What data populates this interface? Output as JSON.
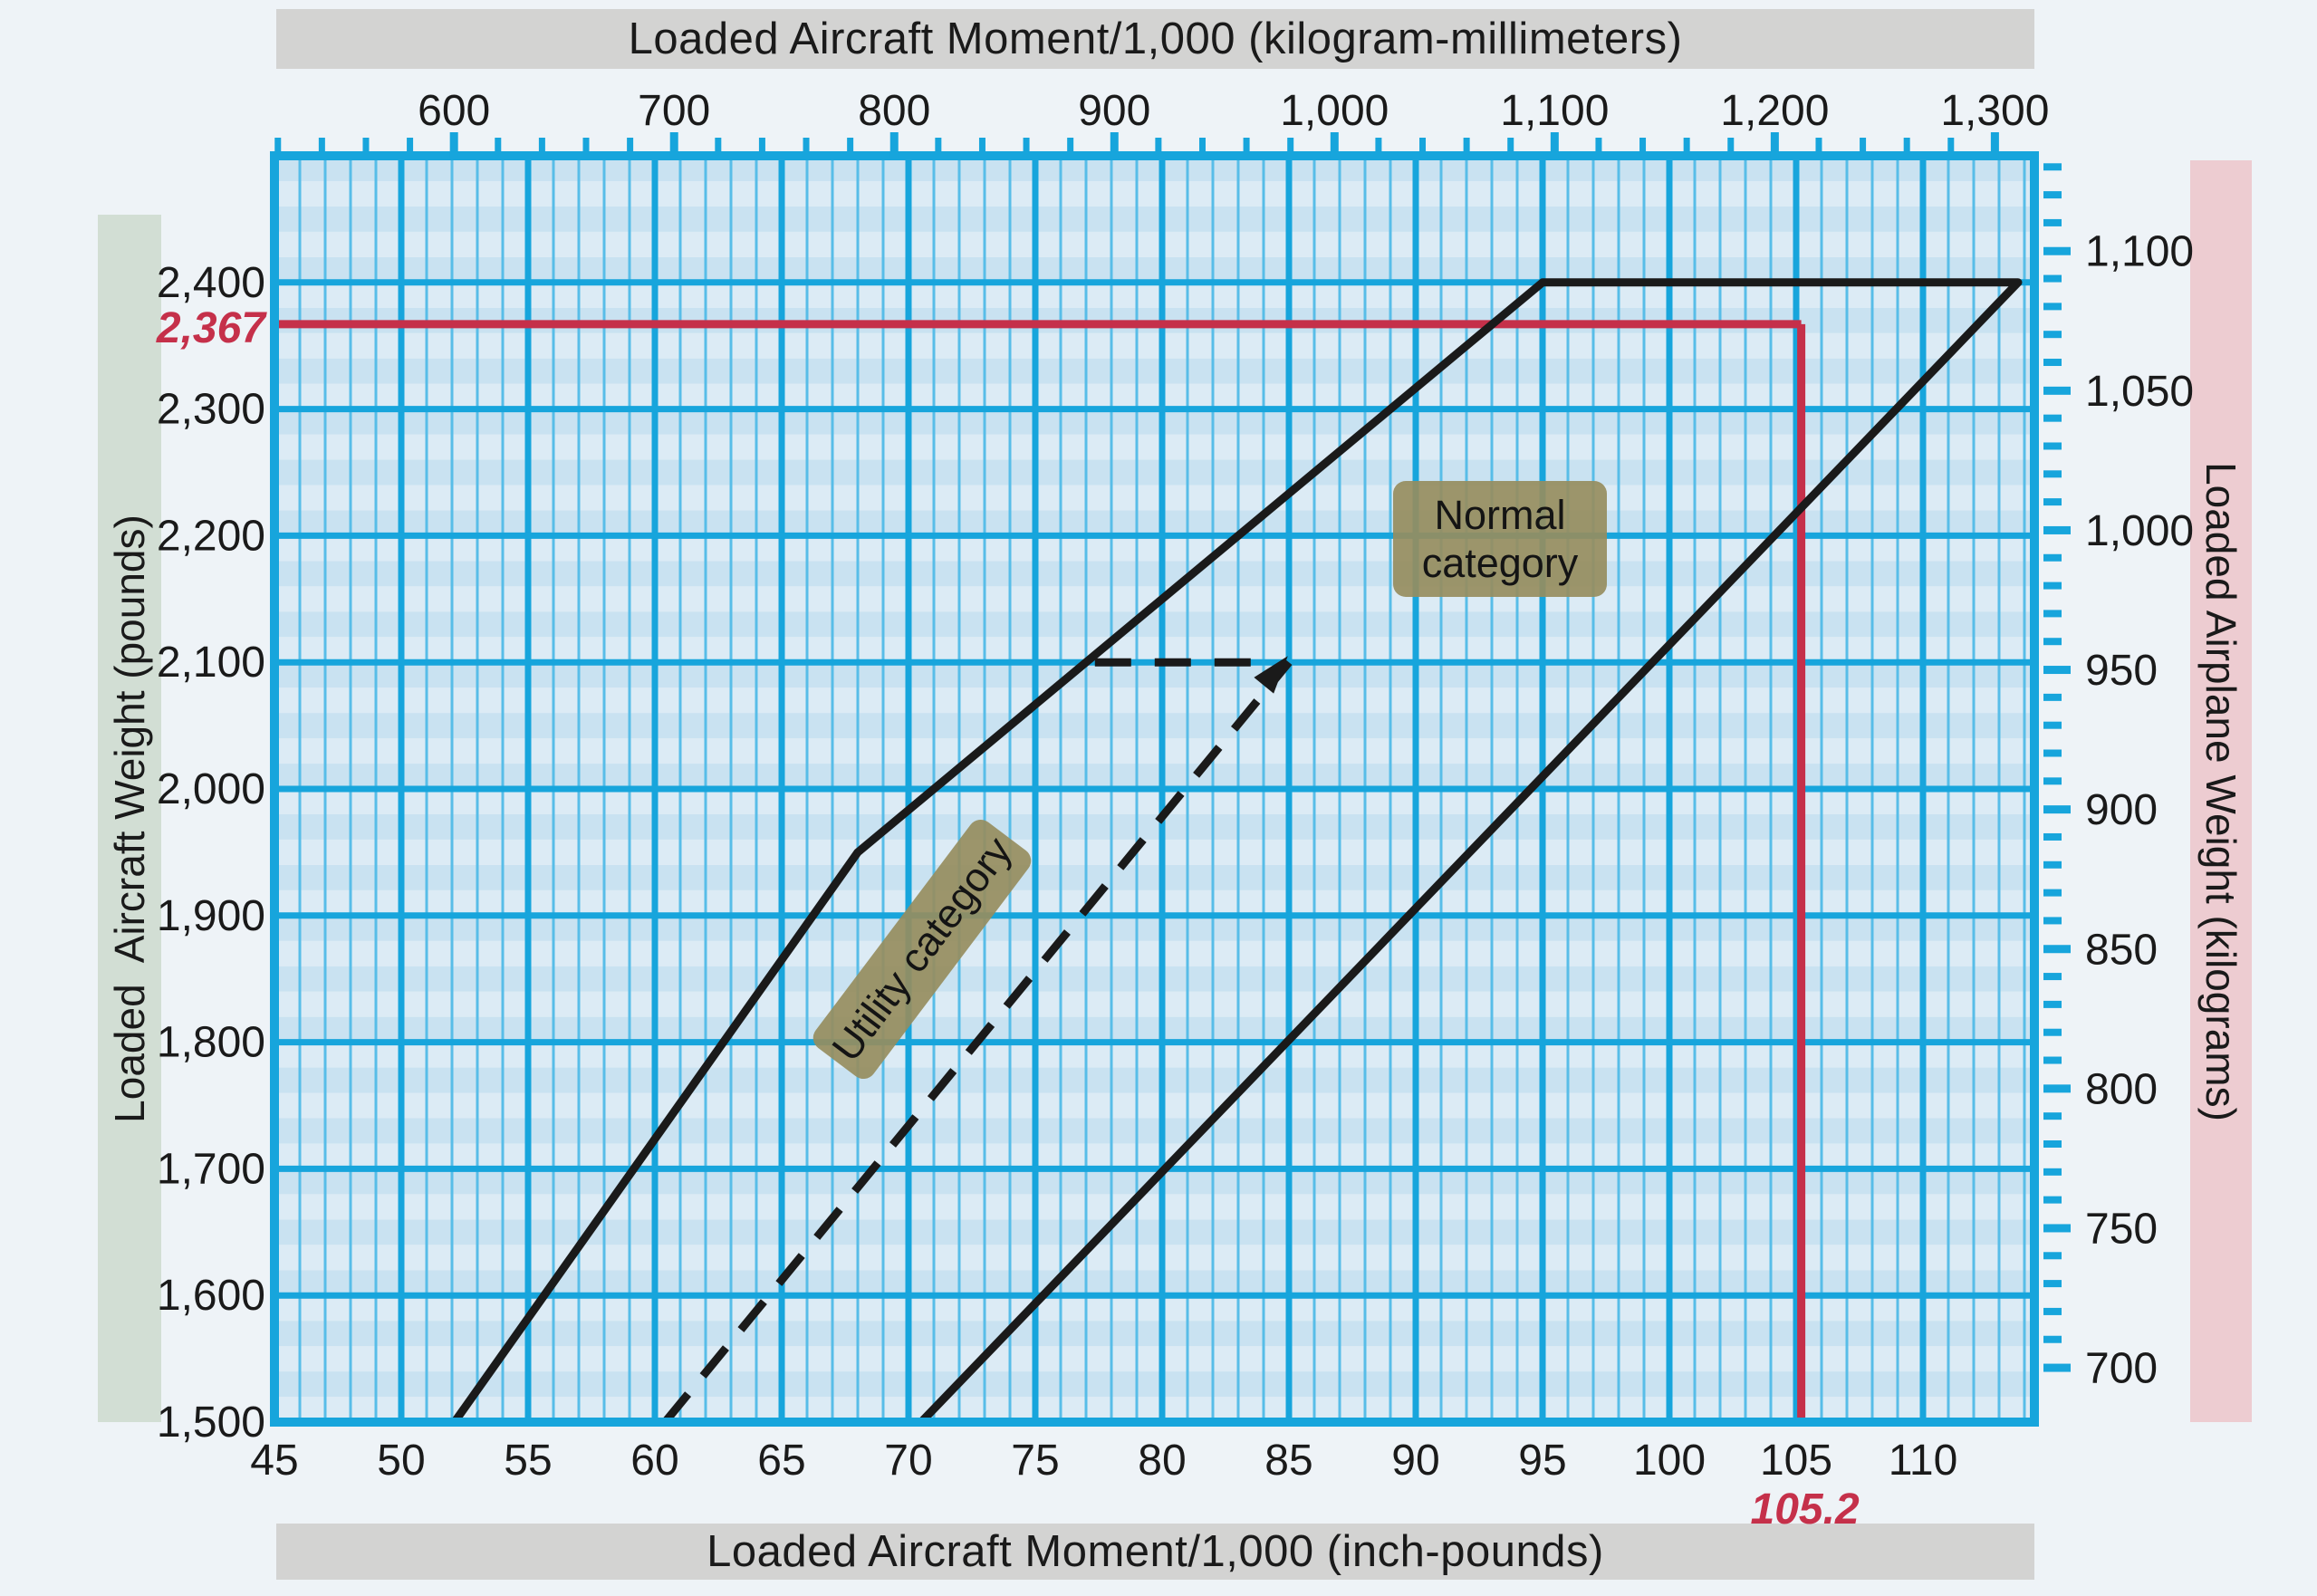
{
  "figure": {
    "kind": "weight-and-balance moment envelope graph",
    "background": "#eef3f7"
  },
  "top_bar": {
    "title": "Loaded Aircraft Moment/1,000 (kilogram-millimeters)"
  },
  "bottom_bar": {
    "title": "Loaded Aircraft Moment/1,000 (inch-pounds)"
  },
  "left_bar": {
    "title": "Loaded  Aircraft Weight (pounds)"
  },
  "right_bar": {
    "title": "Loaded Airplane Weight (kilograms)"
  },
  "colors": {
    "grid_major": "#17a5dc",
    "grid_minor": "#58bde8",
    "band_light": "#dcebf5",
    "band_dark": "#c9e2f1",
    "envelope": "#1a1a1a",
    "reference_red": "#c5304a",
    "tick": "#17a5dc",
    "label_box": "#968d5e",
    "bar_gray": "#d3d3d2",
    "bar_green": "#d2ded4",
    "bar_pink": "#edccd1"
  },
  "chart_data": {
    "type": "line",
    "title": "Loaded aircraft moment envelope (Normal and Utility category)",
    "x_axis_bottom": {
      "label": "Loaded Aircraft Moment/1,000 (inch-pounds)",
      "range": [
        45,
        114.39
      ],
      "tick_labels": [
        "45",
        "50",
        "55",
        "60",
        "65",
        "70",
        "75",
        "80",
        "85",
        "90",
        "95",
        "100",
        "105",
        "110"
      ],
      "tick_values": [
        45,
        50,
        55,
        60,
        65,
        70,
        75,
        80,
        85,
        90,
        95,
        100,
        105,
        110
      ],
      "minor_step": 1,
      "major_step": 5,
      "grid": "on"
    },
    "x_axis_top": {
      "label": "Loaded Aircraft Moment/1,000 (kilogram-millimeters)",
      "tick_labels": [
        "600",
        "700",
        "800",
        "900",
        "1,000",
        "1,100",
        "1,200",
        "1,300"
      ],
      "tick_values": [
        600,
        700,
        800,
        900,
        1000,
        1100,
        1200,
        1300
      ],
      "minor_tick_step": 20,
      "minor_tick_range": [
        520,
        1300
      ],
      "kgmm_per_inchpound": 11.5212
    },
    "y_axis_left": {
      "label": "Loaded  Aircraft Weight (pounds)",
      "range": [
        1500,
        2500
      ],
      "tick_labels": [
        "1,500",
        "1,600",
        "1,700",
        "1,800",
        "1,900",
        "2,000",
        "2,100",
        "2,200",
        "2,300",
        "2,400"
      ],
      "tick_values": [
        1500,
        1600,
        1700,
        1800,
        1900,
        2000,
        2100,
        2200,
        2300,
        2400
      ],
      "band_step": 20,
      "major_step": 100,
      "grid": "on"
    },
    "y_axis_right": {
      "label": "Loaded Airplane Weight (kilograms)",
      "tick_labels": [
        "1,100",
        "1,050",
        "1,000",
        "950",
        "900",
        "850",
        "800",
        "750",
        "700"
      ],
      "tick_values": [
        1100,
        1050,
        1000,
        950,
        900,
        850,
        800,
        750,
        700
      ],
      "minor_tick_step": 10,
      "minor_tick_range": [
        700,
        1130
      ],
      "pounds_per_kilogram": 2.20462
    },
    "series": [
      {
        "name": "normal-category-envelope",
        "style": "solid",
        "points": [
          [
            52.1,
            1500
          ],
          [
            68,
            1950
          ],
          [
            95,
            2400
          ],
          [
            113.75,
            2400
          ],
          [
            70.5,
            1500
          ]
        ]
      },
      {
        "name": "utility-category-right-boundary",
        "style": "dashed",
        "points": [
          [
            60.4,
            1500
          ],
          [
            85,
            2100
          ]
        ]
      },
      {
        "name": "utility-category-top-boundary",
        "style": "dashed",
        "arrow_end": true,
        "points": [
          [
            77.35,
            2100
          ],
          [
            84.1,
            2100
          ]
        ]
      }
    ],
    "reference_lines": {
      "weight": {
        "value": 2367,
        "label": "2,367"
      },
      "moment": {
        "value": 105.2,
        "label": "105.2"
      }
    },
    "category_labels": {
      "normal": "Normal\ncategory",
      "utility": "Utility category"
    }
  }
}
